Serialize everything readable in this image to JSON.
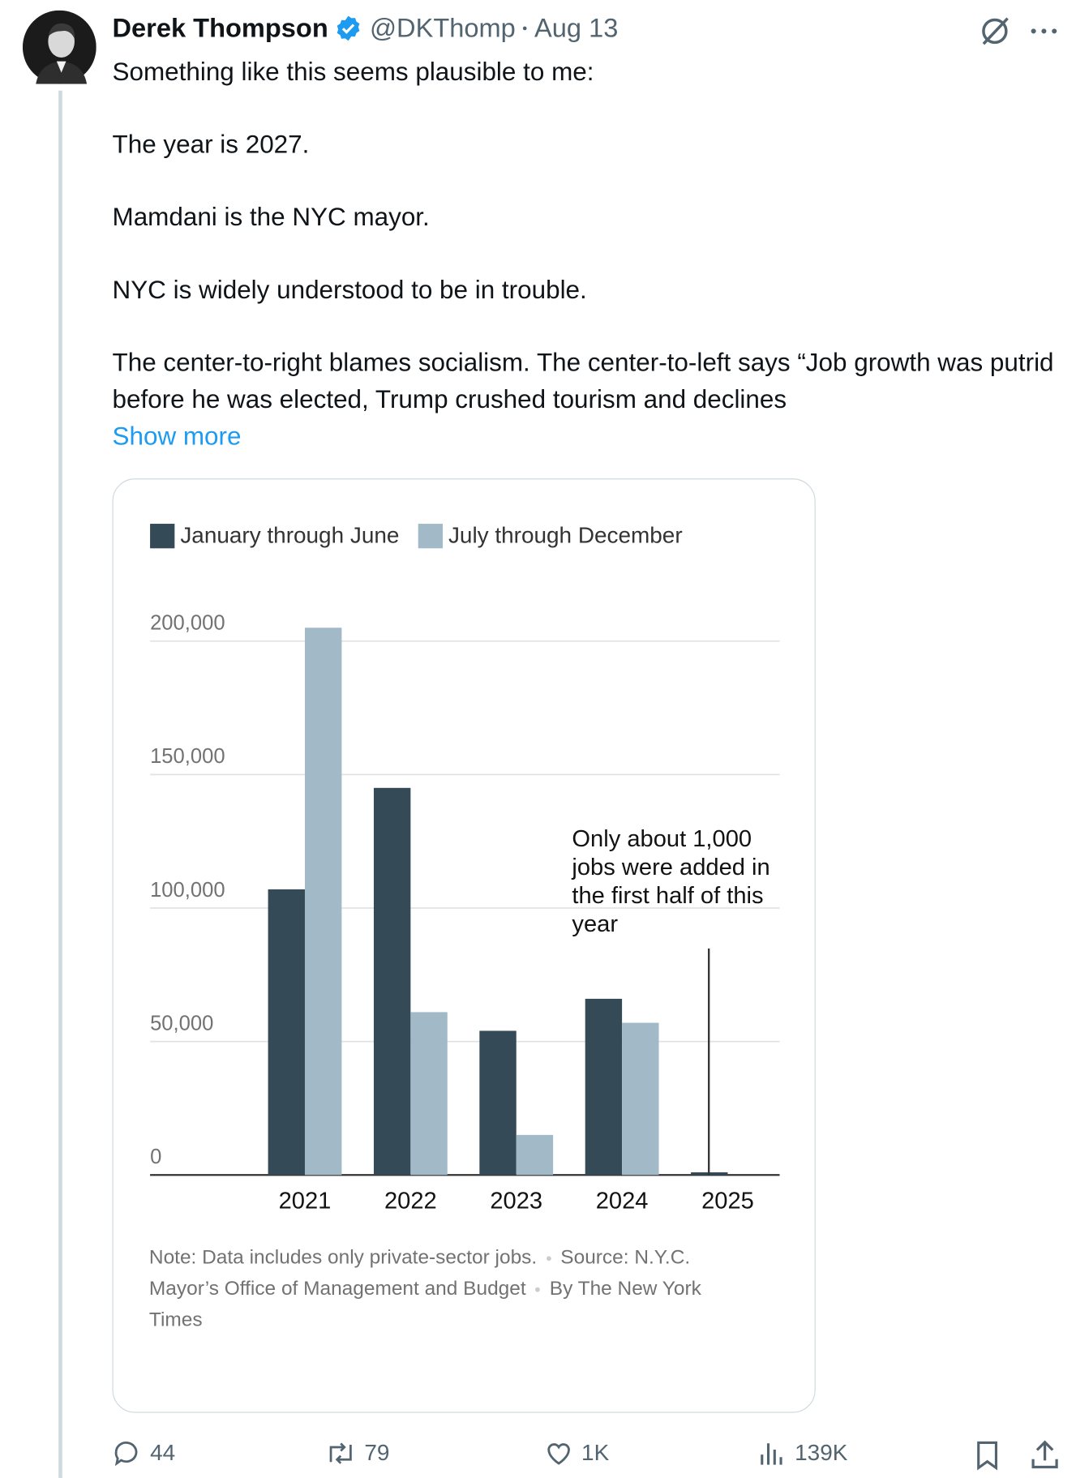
{
  "author": {
    "name": "Derek Thompson",
    "handle": "@DKThomp",
    "date": "Aug 13"
  },
  "text": {
    "paragraphs": [
      "Something like this seems plausible to me:",
      "The year is 2027.",
      "Mamdani is the NYC mayor.",
      "NYC is widely understood to be in trouble.",
      "The center-to-right blames socialism. The center-to-left says “Job growth was putrid before he was elected, Trump crushed tourism and declines"
    ],
    "show_more": "Show more"
  },
  "chart_data": {
    "type": "bar",
    "categories": [
      "2021",
      "2022",
      "2023",
      "2024",
      "2025"
    ],
    "series": [
      {
        "name": "January through June",
        "color": "#344a57",
        "values": [
          107000,
          145000,
          54000,
          66000,
          1000
        ]
      },
      {
        "name": "July through December",
        "color": "#a2b9c7",
        "values": [
          205000,
          61000,
          15000,
          57000,
          null
        ]
      }
    ],
    "ylim": [
      0,
      210000
    ],
    "yticks": [
      0,
      {
        "value": 50000,
        "label": "50,000"
      },
      {
        "value": 100000,
        "label": "100,000"
      },
      {
        "value": 150000,
        "label": "150,000"
      },
      {
        "value": 200000,
        "label": "200,000"
      }
    ],
    "grid": true,
    "legend": "top-left",
    "annotation": "Only about 1,000 jobs were added in the first half of this year",
    "note": "Note: Data includes only private-sector jobs.",
    "source": "Source: N.Y.C. Mayor’s Office of Management and Budget",
    "credit": "By The New York Times"
  },
  "actions": {
    "replies": "44",
    "reposts": "79",
    "likes": "1K",
    "views": "139K"
  }
}
